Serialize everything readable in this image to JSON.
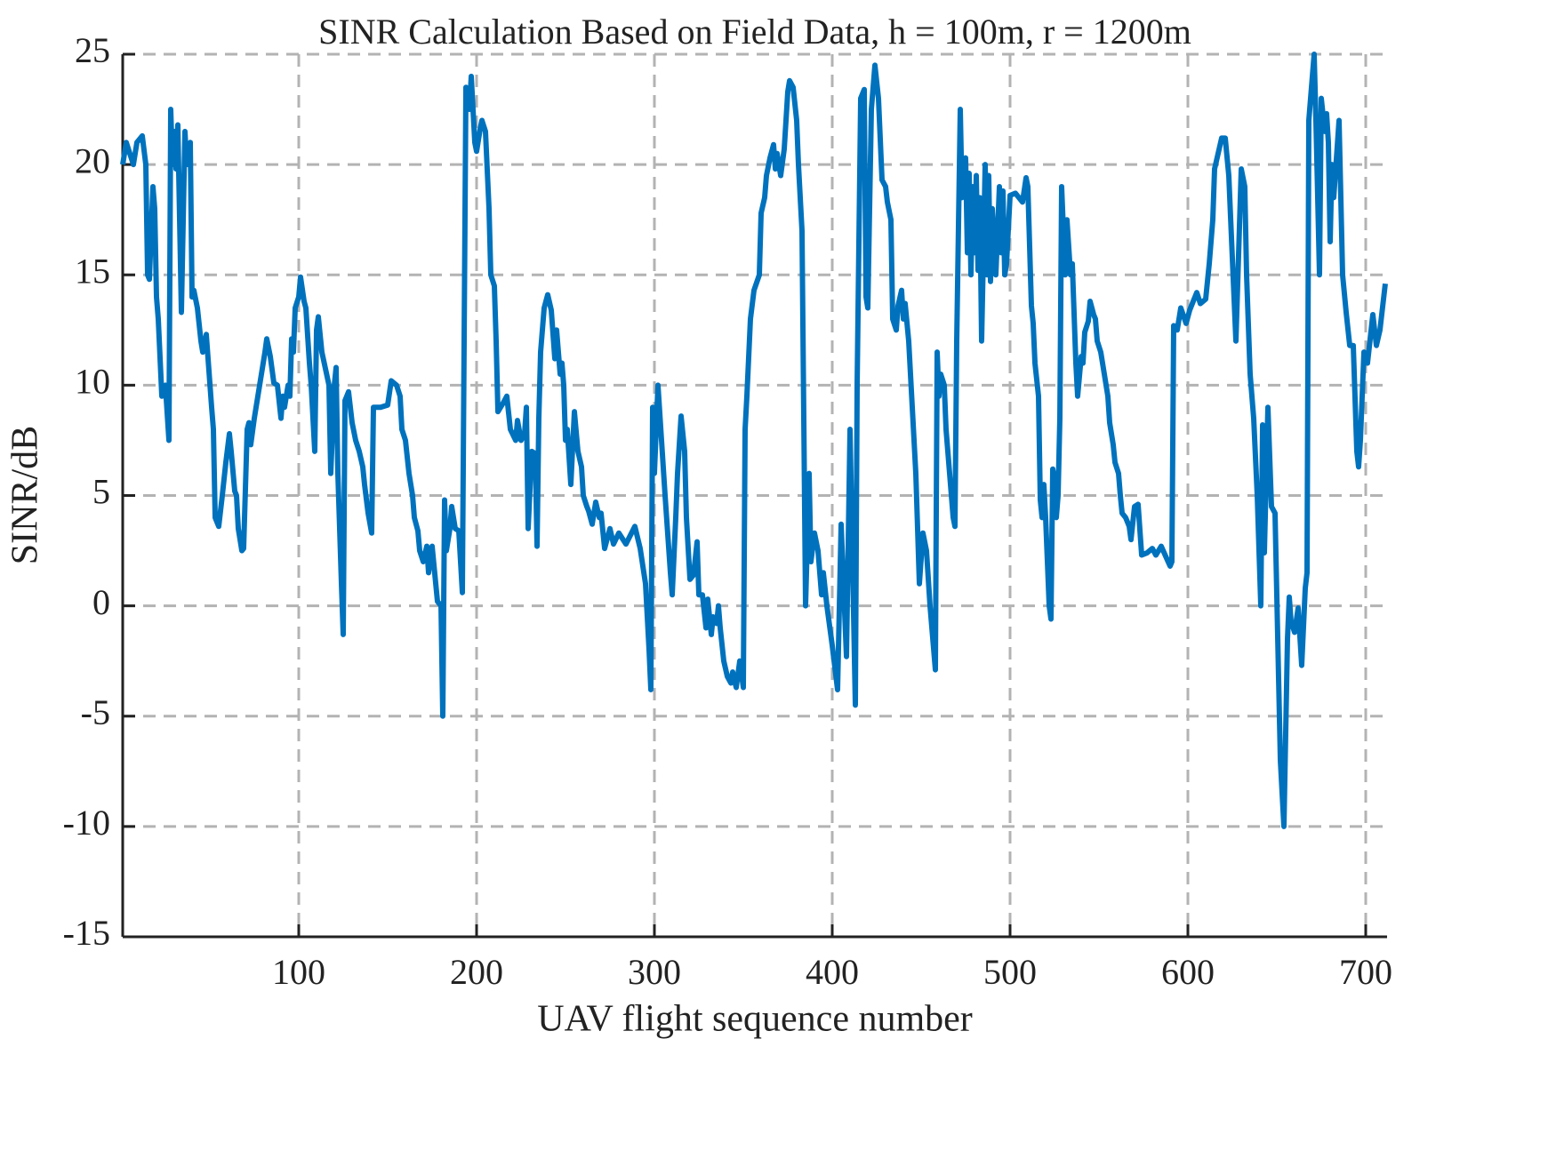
{
  "chart_data": {
    "type": "line",
    "title": "SINR Calculation Based on Field Data, h = 100m, r = 1200m",
    "x_label": "UAV flight sequence number",
    "y_label": "SINR/dB",
    "xlim": [
      1,
      712
    ],
    "ylim": [
      -15,
      25
    ],
    "xticks": [
      100,
      200,
      300,
      400,
      500,
      600,
      700
    ],
    "yticks": [
      -15,
      -10,
      -5,
      0,
      5,
      10,
      15,
      20,
      25
    ],
    "grid": true,
    "x": [
      1,
      3,
      5,
      7,
      9,
      12,
      14,
      15,
      16,
      18,
      19,
      20,
      21,
      23,
      25,
      27,
      28,
      29,
      30,
      31,
      32,
      34,
      36,
      37,
      39,
      40,
      41,
      43,
      45,
      46,
      48,
      51,
      52,
      53,
      55,
      57,
      59,
      61,
      62,
      64,
      65,
      66,
      68,
      69,
      71,
      72,
      73,
      75,
      77,
      81,
      82,
      84,
      86,
      88,
      90,
      91,
      92,
      94,
      95,
      96,
      97,
      98,
      100,
      101,
      103,
      104,
      106,
      107,
      109,
      110,
      111,
      113,
      117,
      118,
      120,
      121,
      122,
      124,
      125,
      126,
      128,
      130,
      132,
      134,
      136,
      137,
      139,
      141,
      142,
      146,
      150,
      152,
      155,
      157,
      158,
      160,
      162,
      164,
      165,
      167,
      168,
      170,
      172,
      173,
      175,
      178,
      180,
      181,
      182,
      183,
      185,
      186,
      188,
      190,
      192,
      194,
      196,
      197,
      199,
      200,
      202,
      203,
      205,
      207,
      208,
      210,
      211,
      212,
      215,
      217,
      219,
      222,
      223,
      225,
      227,
      228,
      229,
      231,
      233,
      234,
      235,
      236,
      238,
      240,
      242,
      244,
      245,
      247,
      248,
      249,
      250,
      251,
      253,
      255,
      257,
      259,
      260,
      262,
      263,
      265,
      267,
      269,
      270,
      272,
      275,
      277,
      280,
      284,
      289,
      292,
      295,
      297,
      298,
      299,
      300,
      302,
      304,
      306,
      309,
      310,
      312,
      313,
      315,
      317,
      318,
      320,
      322,
      324,
      325,
      327,
      329,
      330,
      332,
      333,
      335,
      336,
      337,
      339,
      341,
      343,
      344,
      346,
      348,
      350,
      351,
      352,
      354,
      356,
      359,
      360,
      362,
      363,
      365,
      367,
      368,
      369,
      371,
      373,
      375,
      376,
      378,
      380,
      381,
      383,
      385,
      387,
      388,
      390,
      392,
      394,
      395,
      397,
      400,
      403,
      405,
      408,
      410,
      413,
      414,
      416,
      418,
      419,
      420,
      422,
      424,
      426,
      428,
      430,
      431,
      433,
      434,
      436,
      437,
      439,
      440,
      441,
      443,
      445,
      447,
      449,
      451,
      453,
      455,
      458,
      459,
      460,
      461,
      463,
      464,
      466,
      468,
      469,
      470,
      472,
      473,
      475,
      476,
      477,
      478,
      479,
      480,
      481,
      482,
      483,
      484,
      486,
      487,
      488,
      489,
      490,
      491,
      492,
      494,
      495,
      496,
      497,
      498,
      500,
      503,
      505,
      507,
      509,
      510,
      512,
      513,
      514,
      516,
      517,
      518,
      519,
      520,
      522,
      523,
      524,
      525,
      526,
      527,
      528,
      529,
      531,
      532,
      534,
      535,
      537,
      538,
      540,
      541,
      542,
      544,
      545,
      547,
      548,
      549,
      551,
      553,
      555,
      556,
      558,
      559,
      561,
      562,
      563,
      565,
      567,
      568,
      570,
      572,
      574,
      577,
      580,
      582,
      585,
      590,
      591,
      592,
      594,
      596,
      599,
      601,
      603,
      605,
      607,
      610,
      612,
      614,
      615,
      617,
      619,
      621,
      623,
      627,
      630,
      632,
      633,
      635,
      637,
      639,
      641,
      642,
      643,
      645,
      647,
      649,
      652,
      654,
      656,
      657,
      658,
      660,
      662,
      664,
      666,
      667,
      668,
      671,
      672,
      674,
      675,
      677,
      678,
      679,
      680,
      681,
      682,
      685,
      687,
      689,
      691,
      693,
      695,
      696,
      697,
      699,
      701,
      704,
      706,
      708,
      711
    ],
    "series": [
      {
        "color": "#0072BD",
        "values": [
          20,
          21,
          20.5,
          20,
          21,
          21.3,
          20,
          15,
          14.8,
          19,
          18,
          14,
          13,
          9.5,
          10,
          7.5,
          22.5,
          20,
          21.5,
          19.8,
          21.8,
          13.3,
          21.5,
          20,
          21,
          14,
          14.3,
          13.5,
          12,
          11.5,
          12.3,
          9,
          8,
          4,
          3.6,
          5,
          6.5,
          7.8,
          7,
          5.2,
          5,
          3.5,
          2.5,
          2.6,
          8,
          8.3,
          7.3,
          8.5,
          9.5,
          11.5,
          12.1,
          11.3,
          10.1,
          10,
          8.5,
          9.5,
          9,
          10,
          9.5,
          12.1,
          11.5,
          13.5,
          14,
          14.9,
          13.8,
          13.5,
          11,
          10,
          7,
          12.5,
          13.1,
          11.5,
          10,
          6,
          10,
          10.8,
          6,
          1,
          -1.3,
          9.3,
          9.7,
          8.3,
          7.5,
          7,
          6.3,
          5.5,
          4.2,
          3.3,
          9,
          9,
          9.1,
          10.2,
          10,
          9.5,
          8,
          7.5,
          6,
          5,
          4,
          3.4,
          2.5,
          2,
          2.7,
          1.5,
          2.7,
          0.2,
          0,
          -5,
          4.8,
          2.5,
          3.5,
          4.5,
          3.5,
          3.4,
          0.6,
          23.5,
          22.5,
          24,
          21,
          20.6,
          21.6,
          22,
          21.5,
          18,
          15,
          14.5,
          12,
          8.8,
          9.2,
          9.5,
          8,
          7.5,
          8.4,
          7.5,
          7.8,
          9,
          3.5,
          7,
          6.9,
          2.7,
          8.5,
          11.5,
          13.5,
          14.1,
          13.4,
          11.2,
          12.5,
          10.5,
          11,
          10,
          7.5,
          8,
          5.5,
          8.8,
          7,
          6.3,
          5,
          4.5,
          4.3,
          3.7,
          4.7,
          4,
          4.2,
          2.6,
          3.5,
          2.8,
          3.3,
          2.8,
          3.6,
          2.6,
          1,
          -2,
          -3.8,
          9,
          6,
          10,
          7.5,
          5,
          1.5,
          0.5,
          4,
          6,
          8.6,
          7,
          4,
          1.2,
          1.4,
          2.9,
          0.5,
          0.5,
          -1,
          0.3,
          -1.3,
          -0.5,
          -0.8,
          0,
          -1,
          -2.5,
          -3.2,
          -3.5,
          -3,
          -3.7,
          -2.5,
          -3.7,
          8,
          9.5,
          13,
          14.3,
          15,
          17.8,
          18.5,
          19.5,
          20.3,
          20.9,
          19.8,
          20.5,
          19.5,
          20.7,
          23.3,
          23.8,
          23.5,
          22,
          20,
          17,
          0,
          6,
          2,
          3.3,
          2.5,
          0.5,
          1.5,
          0,
          -1.8,
          -3.8,
          3.7,
          -2.3,
          8,
          -4.5,
          10,
          23,
          23.4,
          14,
          13.5,
          22.5,
          24.5,
          23,
          19.3,
          19,
          18.3,
          17.5,
          13,
          12.5,
          13.6,
          14.3,
          13,
          13.7,
          12,
          9,
          6,
          1,
          3.3,
          2.5,
          0,
          -2.9,
          11.5,
          9.5,
          10.5,
          10,
          8,
          6,
          4,
          3.6,
          12,
          22.5,
          18.5,
          20.3,
          16,
          19.6,
          15,
          19,
          16,
          19.5,
          15.2,
          18.5,
          12,
          20,
          15,
          19.5,
          14.7,
          18,
          16.5,
          15,
          19,
          16,
          18.8,
          15,
          15.5,
          18.6,
          18.7,
          18.5,
          18.3,
          19.4,
          19,
          13.6,
          12.8,
          11,
          9.5,
          4.8,
          4,
          5.5,
          4,
          0,
          -0.6,
          6.2,
          5.8,
          4,
          5,
          8.5,
          19,
          15,
          17.5,
          15,
          15.5,
          11,
          9.5,
          11.3,
          11,
          12.4,
          12.9,
          13.8,
          13.2,
          13,
          12,
          11.5,
          10.5,
          9.5,
          8.3,
          7.3,
          6.5,
          6,
          5,
          4.2,
          4,
          3.6,
          3,
          4.5,
          4.6,
          2.3,
          2.4,
          2.6,
          2.3,
          2.7,
          1.8,
          2,
          12.7,
          12.5,
          13.5,
          12.8,
          13.4,
          13.8,
          14.2,
          13.7,
          13.9,
          15.5,
          17.5,
          19.8,
          20.5,
          21.2,
          21.2,
          19.5,
          12,
          19.8,
          19,
          15,
          10.5,
          8.5,
          5,
          0,
          8.2,
          2.4,
          9,
          4.5,
          4.2,
          -7,
          -10,
          -1.5,
          0.4,
          -0.7,
          -1.2,
          -0.1,
          -2.7,
          0.8,
          1.5,
          22,
          25,
          22,
          15,
          23,
          21.5,
          22.3,
          21,
          16.5,
          20,
          18.5,
          22,
          15,
          13.3,
          11.8,
          11.8,
          7,
          6.3,
          7.5,
          11.5,
          11,
          13.2,
          11.8,
          12.5,
          14.6
        ]
      }
    ]
  }
}
